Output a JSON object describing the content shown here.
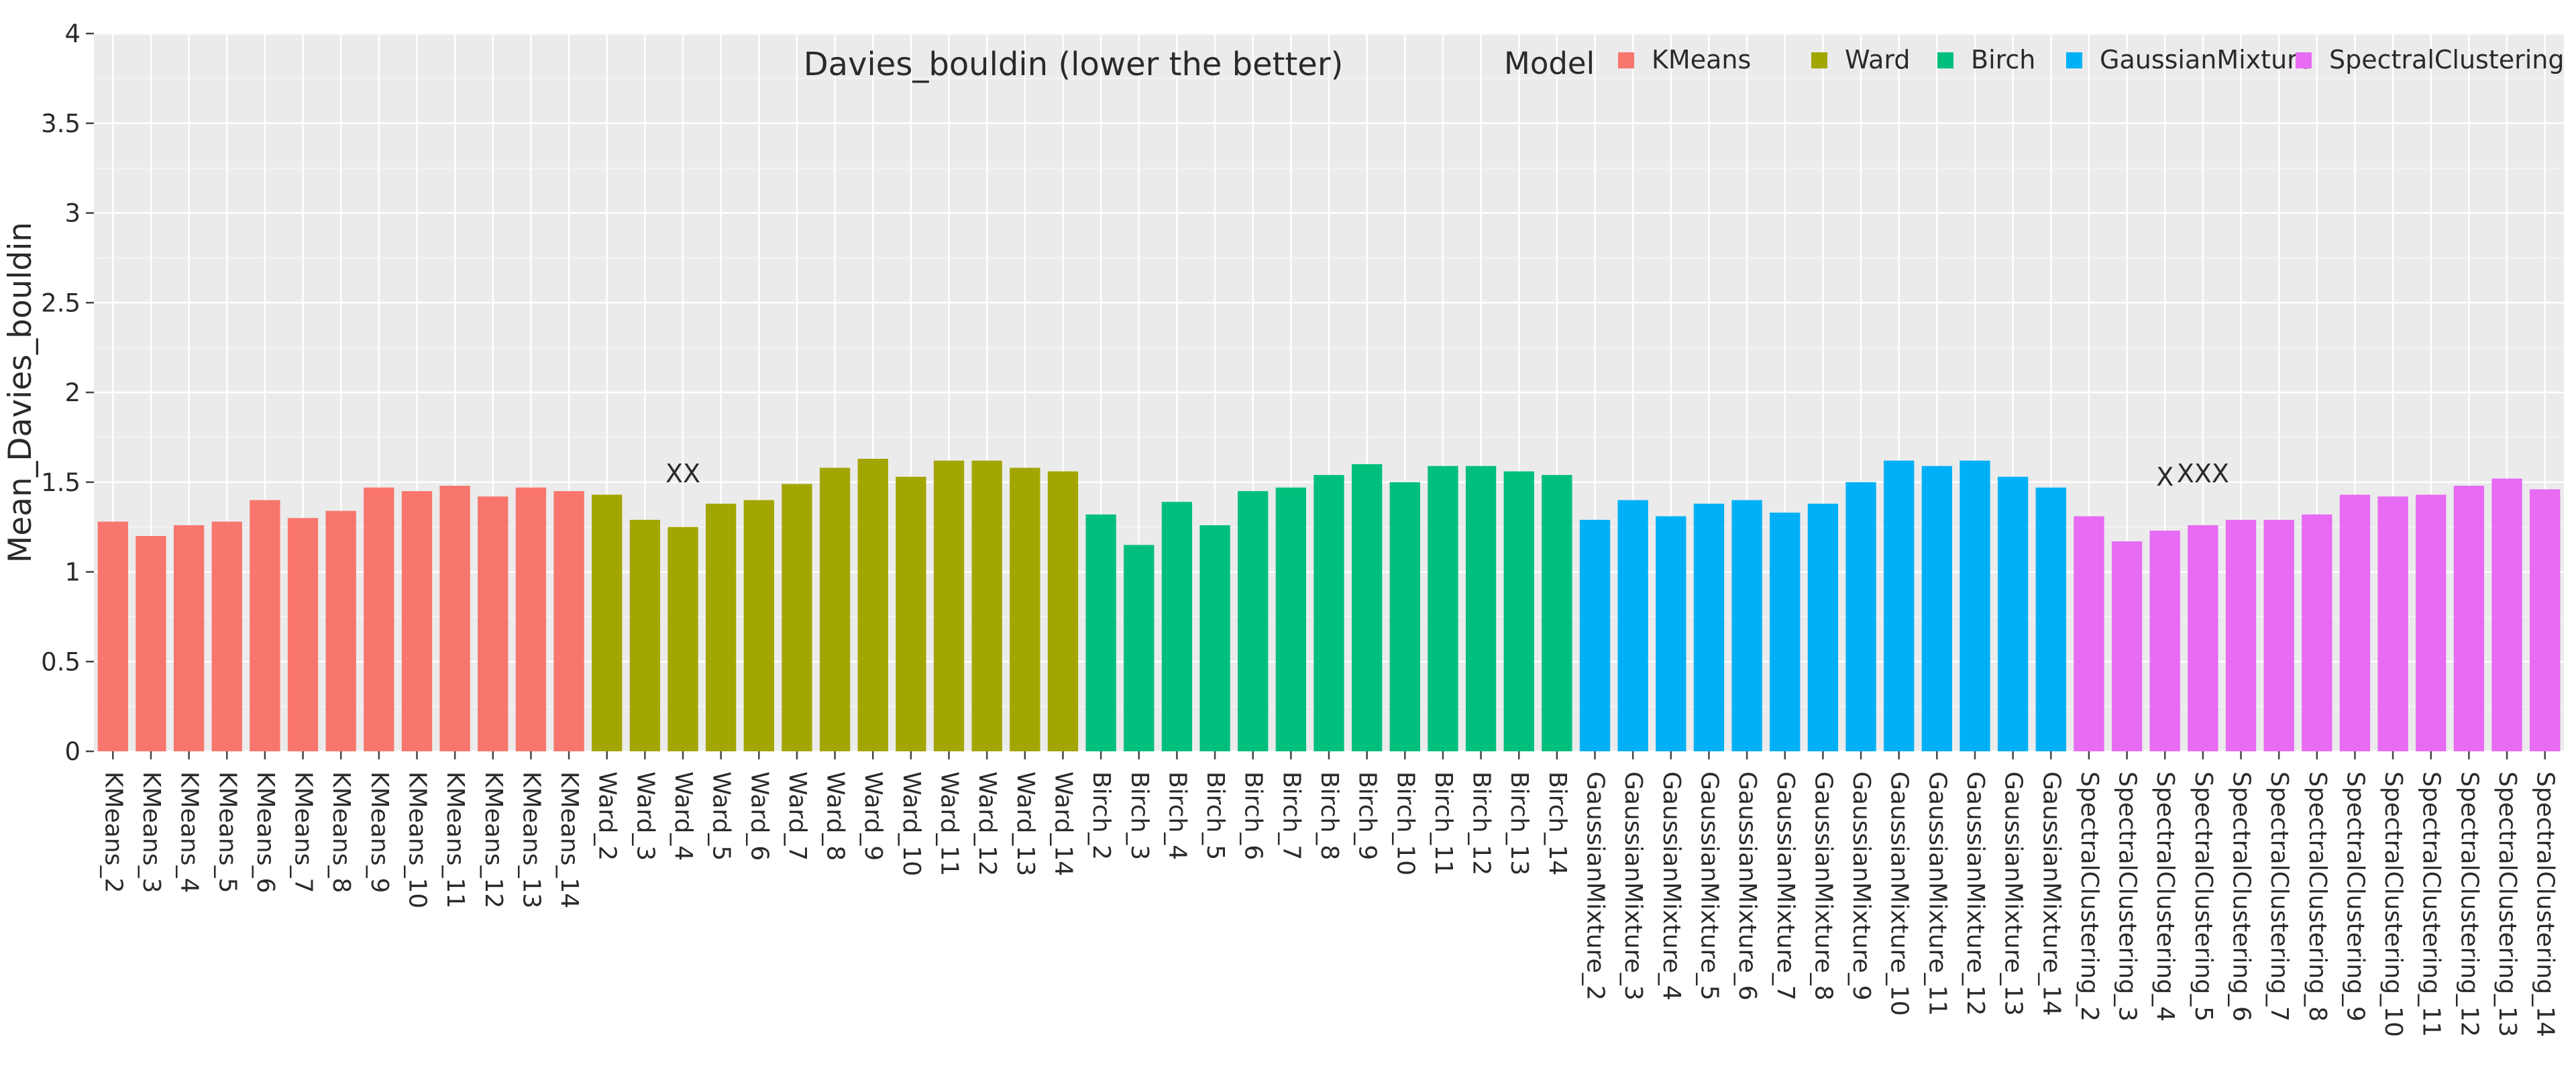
{
  "chart_data": {
    "type": "bar",
    "title": "Davies_bouldin (lower the better)",
    "xlabel": "",
    "ylabel": "Mean_Davies_bouldin",
    "ylim": [
      0,
      4
    ],
    "yticks": [
      0,
      0.5,
      1,
      1.5,
      2,
      2.5,
      3,
      3.5,
      4
    ],
    "ytick_labels": [
      "0",
      "0.5",
      "1",
      "1.5",
      "2",
      "2.5",
      "3",
      "3.5",
      "4"
    ],
    "grid": true,
    "legend_position": "top-right",
    "legend_title": "Model",
    "colors": {
      "KMeans": "#F8766D",
      "Ward": "#A3A500",
      "Birch": "#00BF7D",
      "GaussianMixture": "#00B0F6",
      "SpectralClustering": "#E76BF3"
    },
    "series": [
      {
        "name": "KMeans",
        "categories": [
          "KMeans_2",
          "KMeans_3",
          "KMeans_4",
          "KMeans_5",
          "KMeans_6",
          "KMeans_7",
          "KMeans_8",
          "KMeans_9",
          "KMeans_10",
          "KMeans_11",
          "KMeans_12",
          "KMeans_13",
          "KMeans_14"
        ],
        "values": [
          1.28,
          1.2,
          1.26,
          1.28,
          1.4,
          1.3,
          1.34,
          1.47,
          1.45,
          1.48,
          1.42,
          1.47,
          1.45
        ]
      },
      {
        "name": "Ward",
        "categories": [
          "Ward_2",
          "Ward_3",
          "Ward_4",
          "Ward_5",
          "Ward_6",
          "Ward_7",
          "Ward_8",
          "Ward_9",
          "Ward_10",
          "Ward_11",
          "Ward_12",
          "Ward_13",
          "Ward_14"
        ],
        "values": [
          1.43,
          1.29,
          1.25,
          1.38,
          1.4,
          1.49,
          1.58,
          1.63,
          1.53,
          1.62,
          1.62,
          1.58,
          1.56
        ]
      },
      {
        "name": "Birch",
        "categories": [
          "Birch_2",
          "Birch_3",
          "Birch_4",
          "Birch_5",
          "Birch_6",
          "Birch_7",
          "Birch_8",
          "Birch_9",
          "Birch_10",
          "Birch_11",
          "Birch_12",
          "Birch_13",
          "Birch_14"
        ],
        "values": [
          1.32,
          1.15,
          1.39,
          1.26,
          1.45,
          1.47,
          1.54,
          1.6,
          1.5,
          1.59,
          1.59,
          1.56,
          1.54
        ]
      },
      {
        "name": "GaussianMixture",
        "categories": [
          "GaussianMixture_2",
          "GaussianMixture_3",
          "GaussianMixture_4",
          "GaussianMixture_5",
          "GaussianMixture_6",
          "GaussianMixture_7",
          "GaussianMixture_8",
          "GaussianMixture_9",
          "GaussianMixture_10",
          "GaussianMixture_11",
          "GaussianMixture_12",
          "GaussianMixture_13",
          "GaussianMixture_14"
        ],
        "values": [
          1.29,
          1.4,
          1.31,
          1.38,
          1.4,
          1.33,
          1.38,
          1.5,
          1.62,
          1.59,
          1.62,
          1.53,
          1.47
        ]
      },
      {
        "name": "SpectralClustering",
        "categories": [
          "SpectralClustering_2",
          "SpectralClustering_3",
          "SpectralClustering_4",
          "SpectralClustering_5",
          "SpectralClustering_6",
          "SpectralClustering_7",
          "SpectralClustering_8",
          "SpectralClustering_9",
          "SpectralClustering_10",
          "SpectralClustering_11",
          "SpectralClustering_12",
          "SpectralClustering_13",
          "SpectralClustering_14"
        ],
        "values": [
          1.31,
          1.17,
          1.23,
          1.26,
          1.29,
          1.29,
          1.32,
          1.43,
          1.42,
          1.43,
          1.48,
          1.52,
          1.46
        ]
      }
    ],
    "annotations": [
      {
        "text": "XX",
        "x": "Ward_4",
        "y": 1.5
      },
      {
        "text": "X",
        "x": "SpectralClustering_4",
        "y": 1.48
      },
      {
        "text": "XXX",
        "x": "SpectralClustering_5",
        "y": 1.5
      }
    ]
  }
}
